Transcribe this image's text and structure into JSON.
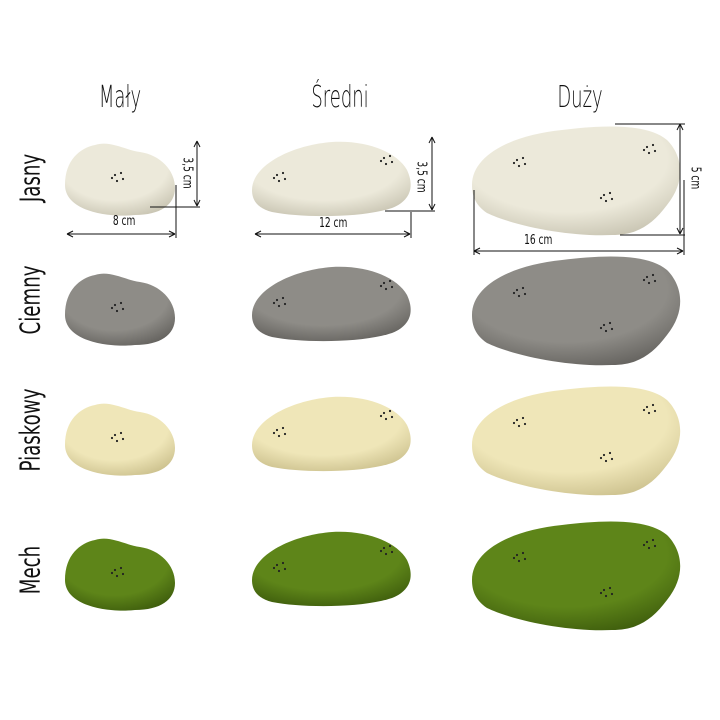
{
  "columns": [
    {
      "label": "Mały",
      "width_label": "8 cm",
      "height_label": "3,5 cm"
    },
    {
      "label": "Średni",
      "width_label": "12 cm",
      "height_label": "3,5 cm"
    },
    {
      "label": "Duży",
      "width_label": "16 cm",
      "height_label": "5 cm"
    }
  ],
  "rows": [
    {
      "label": "Jasny",
      "color": "#ece9da",
      "shade": "#c9c5b3"
    },
    {
      "label": "Ciemny",
      "color": "#8e8c87",
      "shade": "#65635f"
    },
    {
      "label": "Piaskowy",
      "color": "#efe6b8",
      "shade": "#cdc28f"
    },
    {
      "label": "Mech",
      "color": "#5e8519",
      "shade": "#3f5e0d"
    }
  ]
}
